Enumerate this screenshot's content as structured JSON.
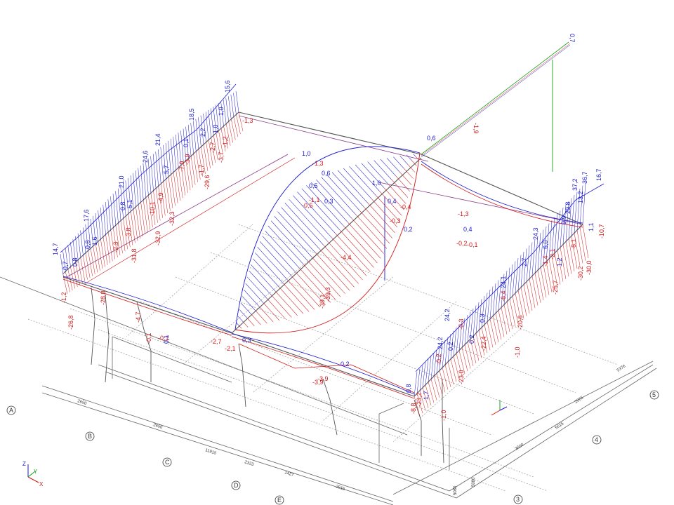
{
  "colors": {
    "blue": "#1a1ad0",
    "red": "#d01818",
    "green": "#17a017",
    "frame": "#555555",
    "grid": "#9a9a9a"
  },
  "grid_axes": {
    "letters": [
      "A",
      "B",
      "C",
      "D",
      "E"
    ],
    "numbers": [
      "3",
      "4",
      "5"
    ]
  },
  "dimensions": {
    "along_front": [
      "2650",
      "2650",
      "11915",
      "2323",
      "1427",
      "2515"
    ],
    "along_right": [
      "5376",
      "2065",
      "5615",
      "3600"
    ],
    "corner": [
      "5080",
      "5080"
    ]
  },
  "axes_indicator": {
    "x": "X",
    "y": "Y",
    "z": "Z"
  },
  "labels": {
    "left_wall_blue": [
      "15,6",
      "18,5",
      "21,4",
      "24,6",
      "21,0",
      "17,6",
      "14,7"
    ],
    "left_wall_blue_small": [
      "1,0",
      "1,0",
      "2,2",
      "0,1",
      "5,7",
      "5,1",
      "0,8",
      "1,6",
      "0,8",
      "0,8",
      "0,7"
    ],
    "left_wall_red": [
      "-1,3",
      "-29,6",
      "-32,3",
      "-32,9",
      "-31,8",
      "-1,2",
      "-26,8",
      "-28,0",
      "-4,9",
      "-10,1",
      "-3,8",
      "-2,3",
      "-7,9",
      "-3,9",
      "-1,7"
    ],
    "left_wall_red_small": [
      "-1,2",
      "-2,7",
      "-3,7",
      "-0,1",
      "-4,7"
    ],
    "right_wall_blue": [
      "16,7",
      "36,7",
      "37,2",
      "29,8",
      "24,3",
      "24,1",
      "24,2",
      "24,2",
      "13,2",
      "9,9",
      "6,0",
      "2,7",
      "0,3",
      "0,2",
      "1,7",
      "1,2",
      "1,1"
    ],
    "right_wall_red": [
      "-10,7",
      "-30,0",
      "-30,2",
      "-25,7",
      "-20,6",
      "-22,4",
      "-23,0",
      "-23,2",
      "-8,1",
      "-2,1",
      "-1,4",
      "-6,4",
      "-1,0",
      "-0,2",
      "-0,3",
      "-8,8",
      "-1,0"
    ],
    "center_blue": [
      "1,0",
      "0,6",
      "0,5",
      "0,3",
      "1,0",
      "0,4",
      "0,4",
      "0,2"
    ],
    "center_red": [
      "-1,3",
      "-1,3",
      "-0,4",
      "-1,1",
      "-0,3",
      "-0,2",
      "-0,1",
      "-0,5"
    ],
    "arch_blue": [
      "0,6",
      "0,3",
      "0,2",
      "0,7"
    ],
    "arch_red": [
      "-4,4",
      "-39,3",
      "-39,1",
      "-1,9",
      "-3,9",
      "-0,1",
      "-2,7"
    ],
    "front_blue": [
      "0,1",
      "0,2",
      "0,8"
    ],
    "front_red": [
      "-3,9",
      "-2,1"
    ]
  }
}
